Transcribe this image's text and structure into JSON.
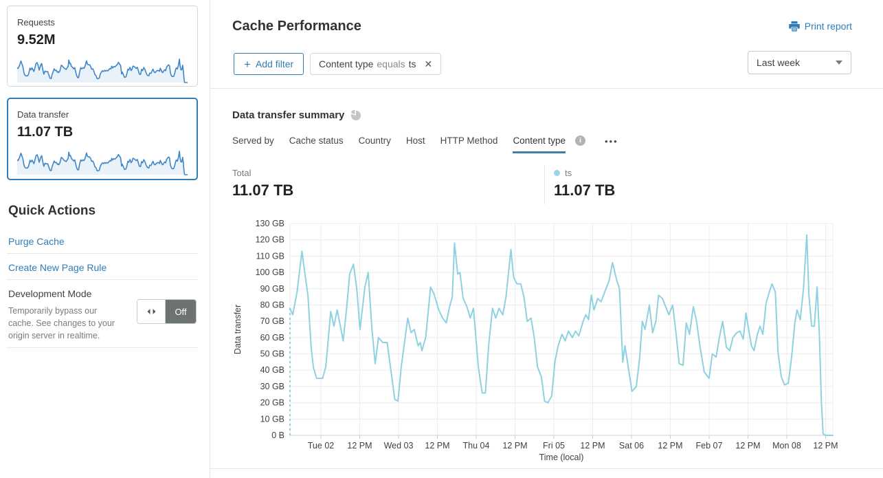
{
  "colors": {
    "accent": "#2e7cb8",
    "tab_underline": "#3e81a8",
    "chart_line": "#8ed1e1",
    "legend_dot": "#9bd4e4",
    "sparkline_stroke": "#3e86c7",
    "sparkline_fill": "#e9f1f9",
    "toggle_off_bg": "#6d7373"
  },
  "icons": {
    "plus": "+",
    "close": "✕",
    "more": "•••",
    "info": "i"
  },
  "sidebar": {
    "cards": [
      {
        "label": "Requests",
        "value": "9.52M",
        "selected": false
      },
      {
        "label": "Data transfer",
        "value": "11.07 TB",
        "selected": true
      }
    ],
    "quick_actions": {
      "title": "Quick Actions",
      "links": [
        {
          "label": "Purge Cache"
        },
        {
          "label": "Create New Page Rule"
        }
      ],
      "dev_mode": {
        "title": "Development Mode",
        "description": "Temporarily bypass our cache. See changes to your origin server in realtime.",
        "toggle_state": "Off"
      }
    }
  },
  "header": {
    "title": "Cache Performance",
    "print_label": "Print report",
    "add_filter_label": "Add filter",
    "filter_chip": {
      "field": "Content type",
      "operator": "equals",
      "value": "ts"
    },
    "time_range": "Last week"
  },
  "summary": {
    "title": "Data transfer summary",
    "tabs": [
      "Served by",
      "Cache status",
      "Country",
      "Host",
      "HTTP Method",
      "Content type"
    ],
    "active_tab": "Content type",
    "total_label": "Total",
    "total_value": "11.07 TB",
    "legend": {
      "label": "ts",
      "value": "11.07 TB"
    }
  },
  "chart_data": {
    "type": "line",
    "title": "Data transfer summary",
    "xlabel": "Time (local)",
    "ylabel": "Data transfer",
    "unit": "GB",
    "ylim": [
      0,
      130
    ],
    "y_ticks": [
      "0 B",
      "10 GB",
      "20 GB",
      "30 GB",
      "40 GB",
      "50 GB",
      "60 GB",
      "70 GB",
      "80 GB",
      "90 GB",
      "100 GB",
      "110 GB",
      "120 GB",
      "130 GB"
    ],
    "x_ticks": [
      "Tue 02",
      "12 PM",
      "Wed 03",
      "12 PM",
      "Thu 04",
      "12 PM",
      "Fri 05",
      "12 PM",
      "Sat 06",
      "12 PM",
      "Feb 07",
      "12 PM",
      "Mon 08",
      "12 PM"
    ],
    "grid": true,
    "legend_position": "above-right",
    "leading_dashed_drop": true,
    "series": [
      {
        "name": "ts",
        "points": [
          [
            0,
            78
          ],
          [
            0.005,
            74
          ],
          [
            0.013,
            88
          ],
          [
            0.022,
            113
          ],
          [
            0.028,
            98
          ],
          [
            0.033,
            86
          ],
          [
            0.039,
            54
          ],
          [
            0.043,
            42
          ],
          [
            0.049,
            35
          ],
          [
            0.06,
            35
          ],
          [
            0.066,
            42
          ],
          [
            0.075,
            76
          ],
          [
            0.081,
            67
          ],
          [
            0.087,
            77
          ],
          [
            0.094,
            65
          ],
          [
            0.098,
            58
          ],
          [
            0.104,
            77
          ],
          [
            0.11,
            99
          ],
          [
            0.117,
            105
          ],
          [
            0.123,
            90
          ],
          [
            0.129,
            65
          ],
          [
            0.138,
            91
          ],
          [
            0.144,
            100
          ],
          [
            0.151,
            65
          ],
          [
            0.157,
            44
          ],
          [
            0.163,
            60
          ],
          [
            0.171,
            57
          ],
          [
            0.179,
            57
          ],
          [
            0.185,
            42
          ],
          [
            0.193,
            22
          ],
          [
            0.199,
            21
          ],
          [
            0.205,
            42
          ],
          [
            0.217,
            72
          ],
          [
            0.223,
            63
          ],
          [
            0.229,
            65
          ],
          [
            0.236,
            55
          ],
          [
            0.24,
            57
          ],
          [
            0.243,
            52
          ],
          [
            0.25,
            60
          ],
          [
            0.259,
            91
          ],
          [
            0.265,
            87
          ],
          [
            0.274,
            77
          ],
          [
            0.281,
            72
          ],
          [
            0.288,
            69
          ],
          [
            0.294,
            79
          ],
          [
            0.299,
            85
          ],
          [
            0.303,
            118
          ],
          [
            0.309,
            99
          ],
          [
            0.313,
            100
          ],
          [
            0.319,
            84
          ],
          [
            0.326,
            79
          ],
          [
            0.332,
            72
          ],
          [
            0.338,
            78
          ],
          [
            0.347,
            42
          ],
          [
            0.354,
            26
          ],
          [
            0.36,
            26
          ],
          [
            0.366,
            55
          ],
          [
            0.373,
            78
          ],
          [
            0.379,
            72
          ],
          [
            0.385,
            78
          ],
          [
            0.392,
            74
          ],
          [
            0.398,
            85
          ],
          [
            0.407,
            114
          ],
          [
            0.412,
            97
          ],
          [
            0.418,
            93
          ],
          [
            0.425,
            93
          ],
          [
            0.431,
            85
          ],
          [
            0.437,
            70
          ],
          [
            0.444,
            72
          ],
          [
            0.45,
            60
          ],
          [
            0.456,
            42
          ],
          [
            0.463,
            36
          ],
          [
            0.469,
            21
          ],
          [
            0.475,
            20
          ],
          [
            0.482,
            24
          ],
          [
            0.488,
            45
          ],
          [
            0.494,
            55
          ],
          [
            0.501,
            62
          ],
          [
            0.507,
            58
          ],
          [
            0.513,
            64
          ],
          [
            0.52,
            60
          ],
          [
            0.526,
            64
          ],
          [
            0.532,
            61
          ],
          [
            0.54,
            70
          ],
          [
            0.545,
            74
          ],
          [
            0.55,
            71
          ],
          [
            0.555,
            86
          ],
          [
            0.56,
            77
          ],
          [
            0.567,
            84
          ],
          [
            0.573,
            82
          ],
          [
            0.581,
            89
          ],
          [
            0.588,
            95
          ],
          [
            0.594,
            106
          ],
          [
            0.602,
            95
          ],
          [
            0.607,
            90
          ],
          [
            0.613,
            45
          ],
          [
            0.617,
            55
          ],
          [
            0.624,
            40
          ],
          [
            0.63,
            27
          ],
          [
            0.638,
            30
          ],
          [
            0.644,
            47
          ],
          [
            0.649,
            70
          ],
          [
            0.654,
            65
          ],
          [
            0.662,
            80
          ],
          [
            0.668,
            63
          ],
          [
            0.674,
            70
          ],
          [
            0.679,
            86
          ],
          [
            0.686,
            84
          ],
          [
            0.692,
            79
          ],
          [
            0.698,
            74
          ],
          [
            0.705,
            80
          ],
          [
            0.711,
            63
          ],
          [
            0.717,
            44
          ],
          [
            0.724,
            43
          ],
          [
            0.73,
            69
          ],
          [
            0.736,
            62
          ],
          [
            0.743,
            79
          ],
          [
            0.749,
            70
          ],
          [
            0.755,
            55
          ],
          [
            0.763,
            39
          ],
          [
            0.772,
            35
          ],
          [
            0.778,
            50
          ],
          [
            0.785,
            48
          ],
          [
            0.791,
            60
          ],
          [
            0.797,
            70
          ],
          [
            0.804,
            54
          ],
          [
            0.81,
            52
          ],
          [
            0.816,
            60
          ],
          [
            0.823,
            63
          ],
          [
            0.829,
            64
          ],
          [
            0.835,
            59
          ],
          [
            0.84,
            75
          ],
          [
            0.845,
            65
          ],
          [
            0.85,
            55
          ],
          [
            0.855,
            52
          ],
          [
            0.861,
            62
          ],
          [
            0.866,
            67
          ],
          [
            0.871,
            62
          ],
          [
            0.877,
            81
          ],
          [
            0.883,
            88
          ],
          [
            0.888,
            93
          ],
          [
            0.894,
            88
          ],
          [
            0.899,
            51
          ],
          [
            0.905,
            36
          ],
          [
            0.911,
            31
          ],
          [
            0.918,
            32
          ],
          [
            0.924,
            48
          ],
          [
            0.93,
            69
          ],
          [
            0.934,
            77
          ],
          [
            0.94,
            71
          ],
          [
            0.946,
            90
          ],
          [
            0.952,
            123
          ],
          [
            0.956,
            86
          ],
          [
            0.961,
            67
          ],
          [
            0.966,
            67
          ],
          [
            0.971,
            91
          ],
          [
            0.975,
            63
          ],
          [
            0.979,
            20
          ],
          [
            0.982,
            1
          ],
          [
            0.987,
            0
          ],
          [
            1,
            0
          ]
        ]
      }
    ]
  }
}
